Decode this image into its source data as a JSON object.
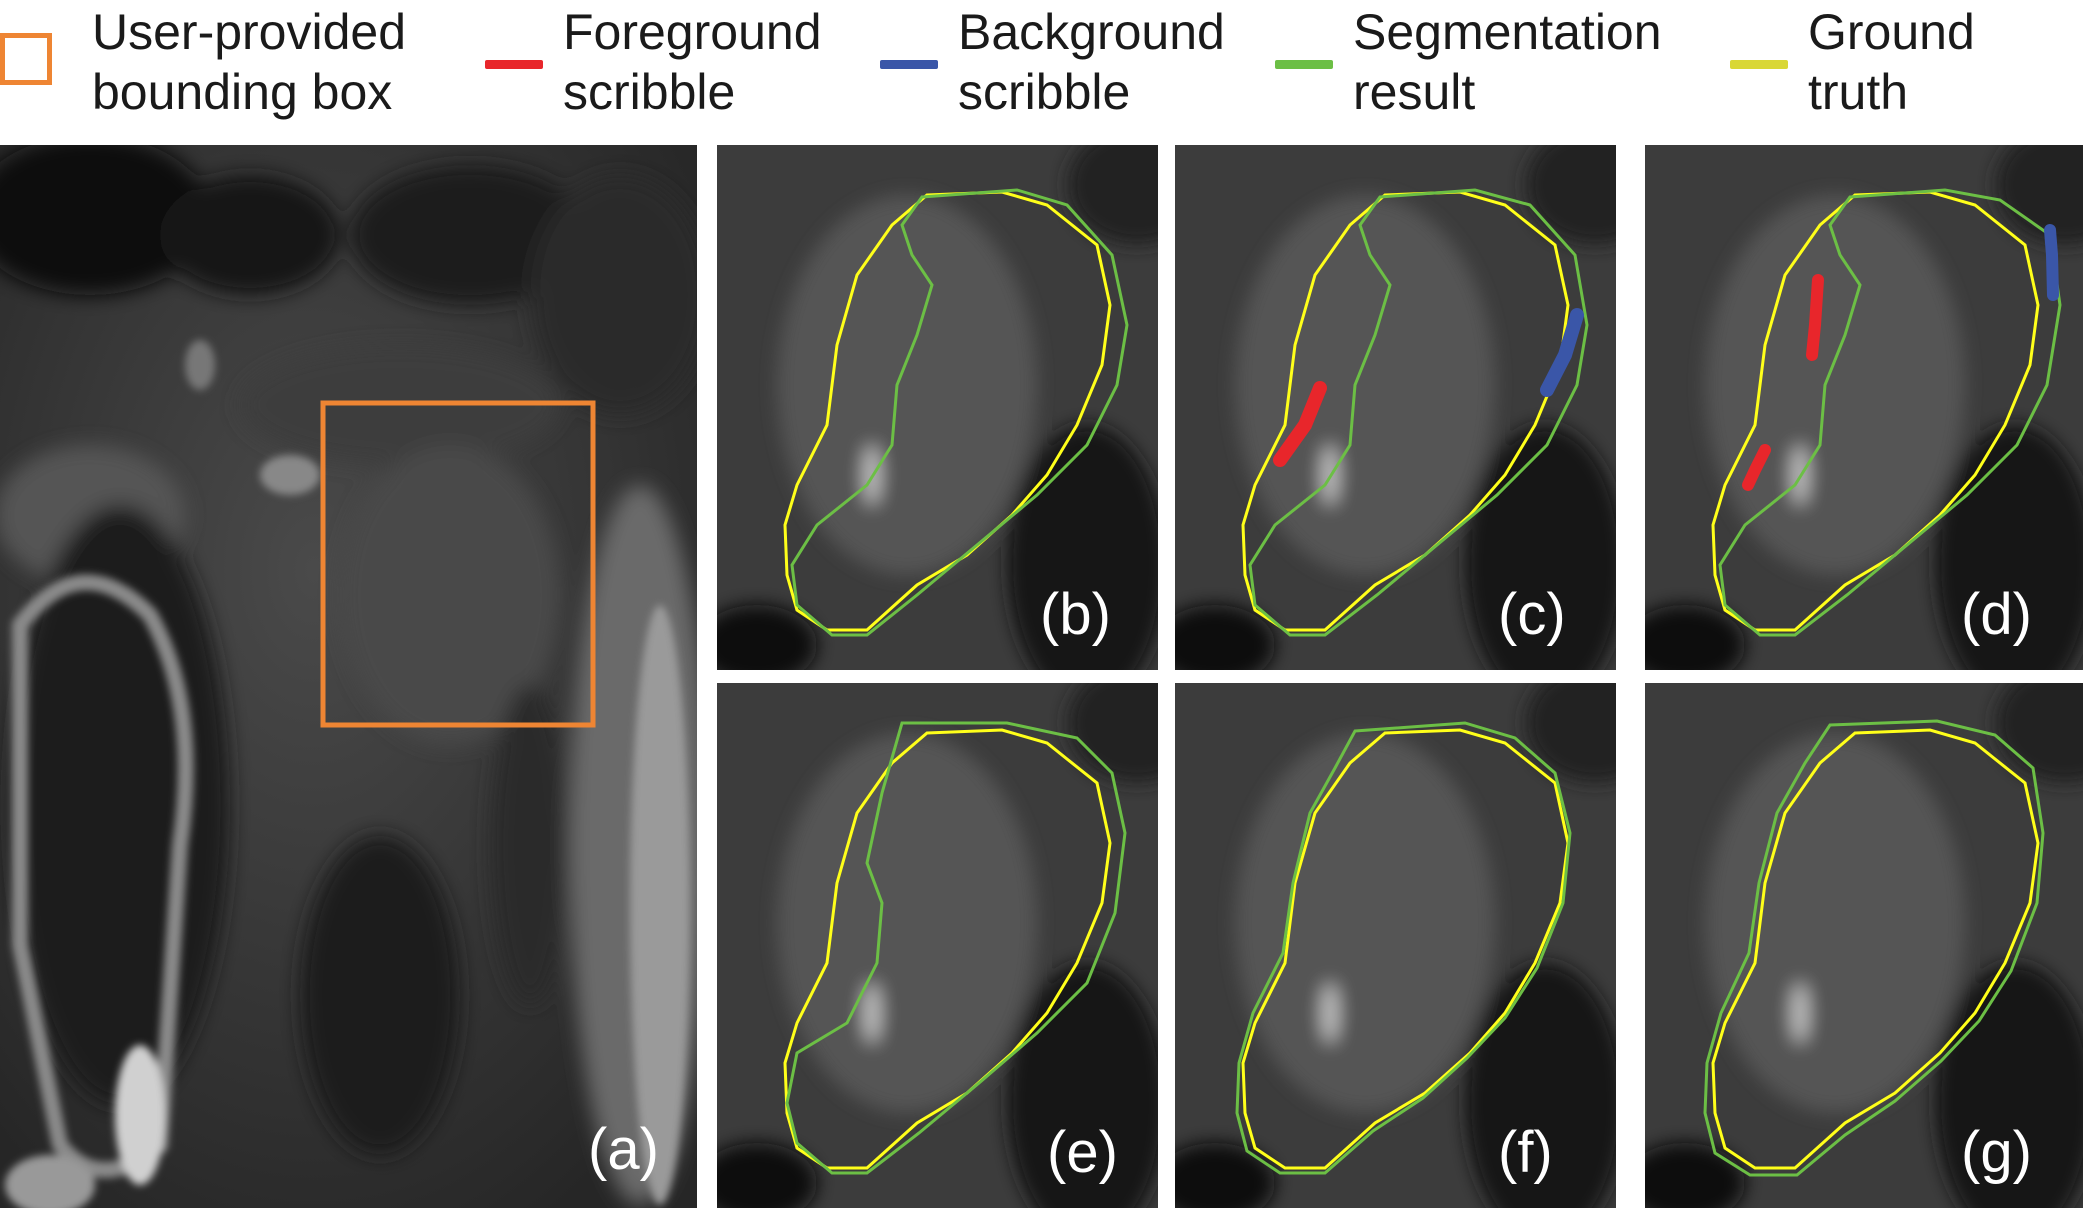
{
  "legend": {
    "items": [
      {
        "line1": "User-provided",
        "line2": "bounding box",
        "icon": "bounding-box-swatch",
        "color": "#ee8533"
      },
      {
        "line1": "Foreground",
        "line2": "scribble",
        "icon": "foreground-scribble-swatch",
        "color": "#e8262b"
      },
      {
        "line1": "Background",
        "line2": "scribble",
        "icon": "background-scribble-swatch",
        "color": "#3a56a8"
      },
      {
        "line1": "Segmentation",
        "line2": "result",
        "icon": "segmentation-result-swatch",
        "color": "#6cbf45"
      },
      {
        "line1": "Ground",
        "line2": "truth",
        "icon": "ground-truth-swatch",
        "color": "#d9d735"
      }
    ]
  },
  "panels": {
    "a": {
      "label": "(a)"
    },
    "b": {
      "label": "(b)"
    },
    "c": {
      "label": "(c)"
    },
    "d": {
      "label": "(d)"
    },
    "e": {
      "label": "(e)"
    },
    "f": {
      "label": "(f)"
    },
    "g": {
      "label": "(g)"
    }
  },
  "colors": {
    "bounding_box": "#ee8533",
    "foreground_scribble": "#e8262b",
    "background_scribble": "#3a56a8",
    "segmentation_result": "#6cbf45",
    "ground_truth": "#ffff1a",
    "background": "#ffffff"
  }
}
